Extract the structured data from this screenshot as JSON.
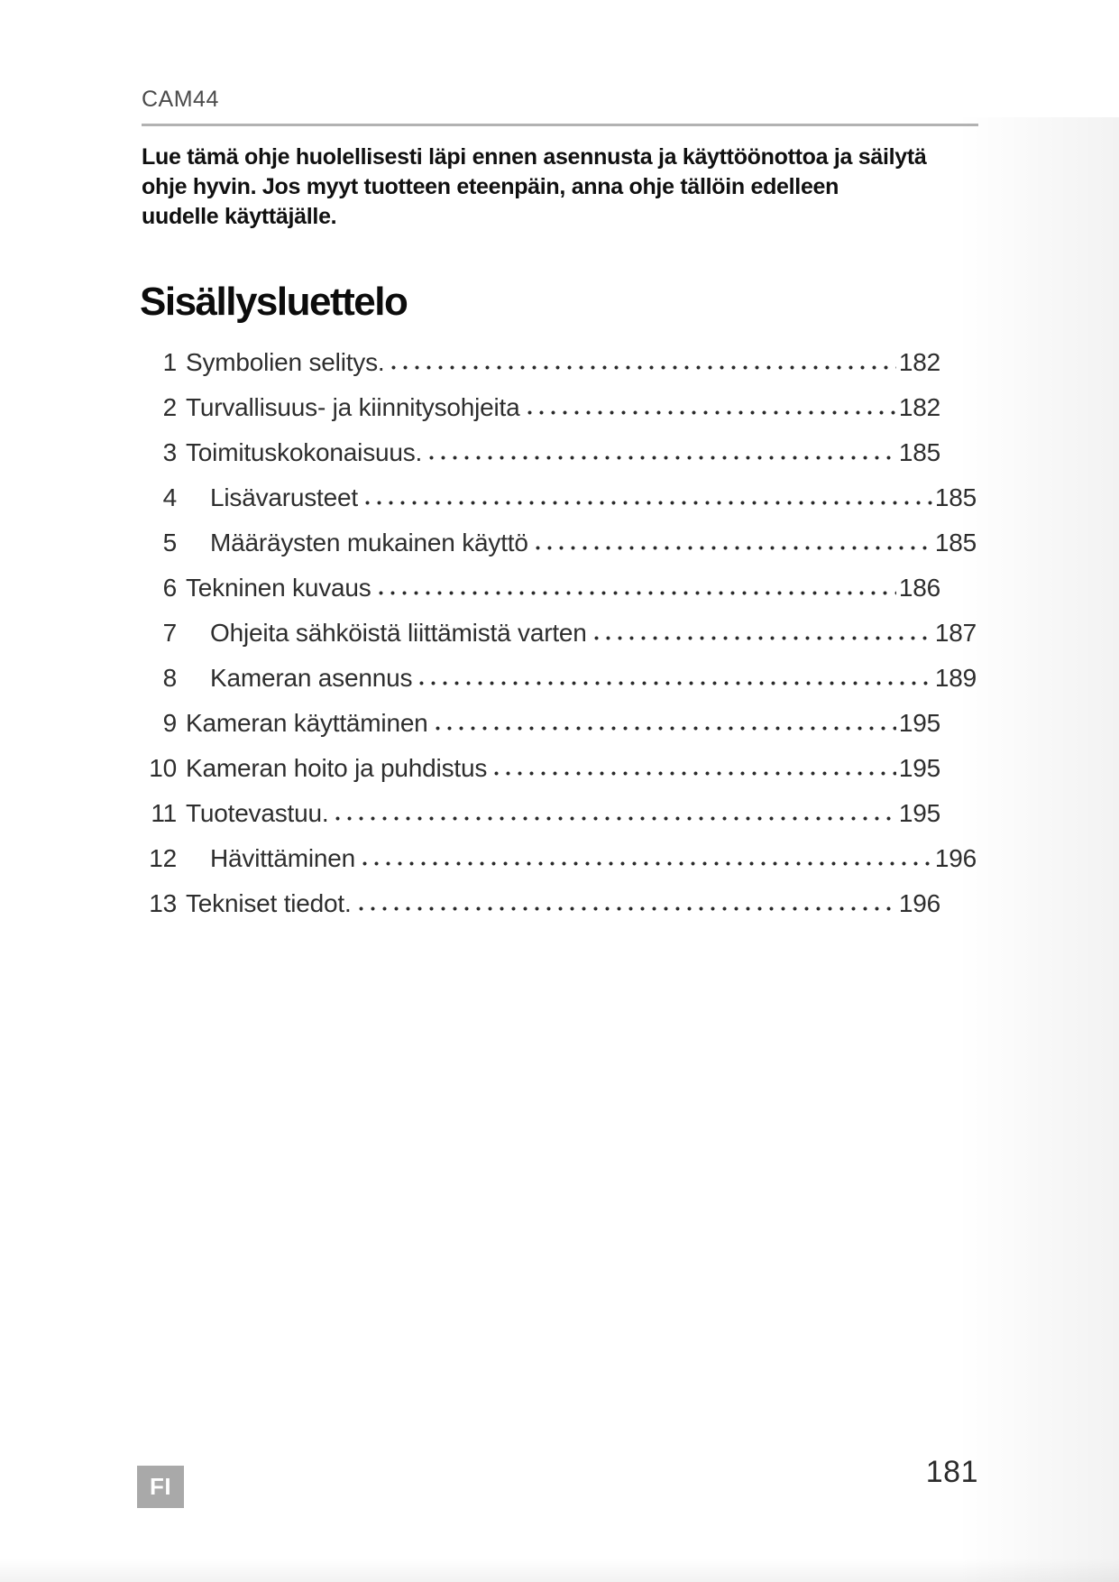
{
  "page": {
    "header_model": "CAM44",
    "footer_page_number": "181",
    "language_badge": "FI"
  },
  "intro": {
    "lines": [
      "Lue tämä ohje huolellisesti läpi ennen asennusta ja käyttöönottoa ja säilytä",
      "ohje hyvin. Jos myyt tuotteen eteenpäin, anna ohje tällöin edelleen",
      "uudelle käyttäjälle."
    ]
  },
  "toc": {
    "title": "Sisällysluettelo",
    "entries": [
      {
        "num": "1",
        "title": "Symbolien selitys.",
        "page": "182",
        "indented": false
      },
      {
        "num": "2",
        "title": "Turvallisuus- ja kiinnitysohjeita",
        "page": "182",
        "indented": false
      },
      {
        "num": "3",
        "title": "Toimituskokonaisuus.",
        "page": "185",
        "indented": false
      },
      {
        "num": "4",
        "title": "Lisävarusteet",
        "page": "185",
        "indented": true
      },
      {
        "num": "5",
        "title": "Määräysten mukainen käyttö",
        "page": "185",
        "indented": true
      },
      {
        "num": "6",
        "title": "Tekninen kuvaus",
        "page": "186",
        "indented": false
      },
      {
        "num": "7",
        "title": "Ohjeita sähköistä liittämistä varten",
        "page": "187",
        "indented": true
      },
      {
        "num": "8",
        "title": "Kameran asennus",
        "page": "189",
        "indented": true
      },
      {
        "num": "9",
        "title": "Kameran käyttäminen",
        "page": "195",
        "indented": false
      },
      {
        "num": "10",
        "title": "Kameran hoito ja puhdistus",
        "page": "195",
        "indented": false
      },
      {
        "num": "11",
        "title": "Tuotevastuu.",
        "page": "195",
        "indented": false
      },
      {
        "num": "12",
        "title": "Hävittäminen",
        "page": "196",
        "indented": true
      },
      {
        "num": "13",
        "title": "Tekniset tiedot.",
        "page": "196",
        "indented": false
      }
    ]
  },
  "colors": {
    "rule": "#b2b2b2",
    "badge_background": "#a9a9a9",
    "badge_text": "#ffffff",
    "header_text": "#4b4b4b",
    "body_text": "#1a1a1a"
  }
}
